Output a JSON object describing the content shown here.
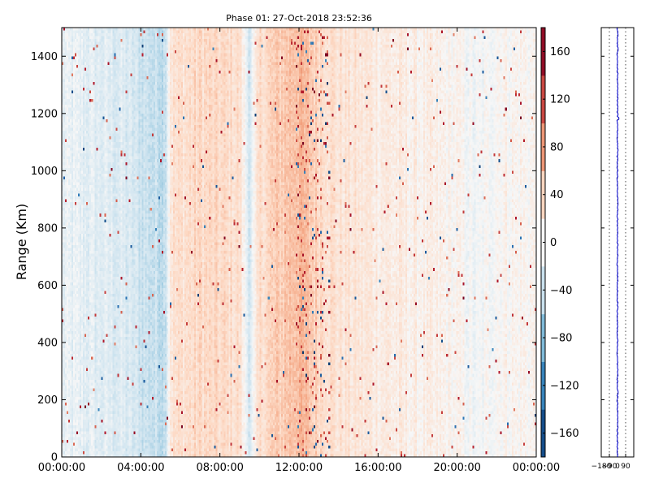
{
  "chart_data": {
    "type": "heatmap",
    "title": "Phase 01: 27-Oct-2018 23:52:36",
    "ylabel": "Range (Km)",
    "xlabel": "",
    "x_ticks": [
      "00:00:00",
      "04:00:00",
      "08:00:00",
      "12:00:00",
      "16:00:00",
      "20:00:00",
      "00:00:00"
    ],
    "x_range_hours": [
      0,
      24
    ],
    "y_ticks": [
      0,
      200,
      400,
      600,
      800,
      1000,
      1200,
      1400
    ],
    "ylim": [
      0,
      1500
    ],
    "colorbar": {
      "ticks": [
        -160,
        -120,
        -80,
        -40,
        0,
        40,
        80,
        120,
        160
      ],
      "range": [
        -180,
        180
      ],
      "colormap": "RdBu_r"
    },
    "column_mean_phase": [
      {
        "hours": 0.0,
        "phase": -15
      },
      {
        "hours": 1.0,
        "phase": -18
      },
      {
        "hours": 2.0,
        "phase": -22
      },
      {
        "hours": 3.0,
        "phase": -25
      },
      {
        "hours": 4.2,
        "phase": -38
      },
      {
        "hours": 5.2,
        "phase": -45
      },
      {
        "hours": 5.5,
        "phase": 25
      },
      {
        "hours": 7.0,
        "phase": 35
      },
      {
        "hours": 9.0,
        "phase": 30
      },
      {
        "hours": 9.5,
        "phase": -30
      },
      {
        "hours": 10.0,
        "phase": 30
      },
      {
        "hours": 12.0,
        "phase": 60
      },
      {
        "hours": 13.0,
        "phase": 40
      },
      {
        "hours": 14.0,
        "phase": 25
      },
      {
        "hours": 16.0,
        "phase": 18
      },
      {
        "hours": 18.0,
        "phase": 10
      },
      {
        "hours": 20.0,
        "phase": 5
      },
      {
        "hours": 21.0,
        "phase": -10
      },
      {
        "hours": 22.0,
        "phase": 5
      },
      {
        "hours": 24.0,
        "phase": 5
      }
    ],
    "side_profile": {
      "x_ticks": [
        "-180",
        "-90",
        "0",
        "90"
      ],
      "xlim": [
        -180,
        180
      ]
    }
  }
}
